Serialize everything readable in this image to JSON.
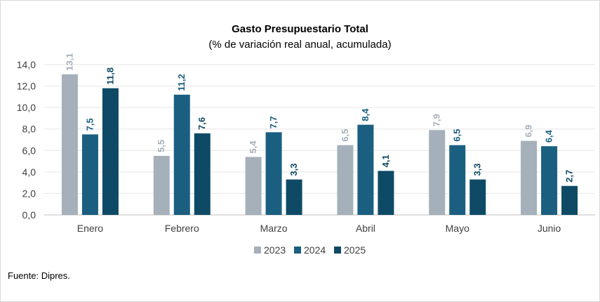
{
  "chart_data": {
    "type": "bar",
    "title": "Gasto Presupuestario Total",
    "subtitle": "(% de variación real anual, acumulada)",
    "categories": [
      "Enero",
      "Febrero",
      "Marzo",
      "Abril",
      "Mayo",
      "Junio"
    ],
    "series": [
      {
        "name": "2023",
        "color": "#a5b0ba",
        "label_color": "#a5b0ba",
        "values": [
          13.1,
          5.5,
          5.4,
          6.5,
          7.9,
          6.9
        ],
        "labels": [
          "13,1",
          "5,5",
          "5,4",
          "6,5",
          "7,9",
          "6,9"
        ]
      },
      {
        "name": "2024",
        "color": "#1a5f80",
        "label_color": "#1a5f80",
        "values": [
          7.5,
          11.2,
          7.7,
          8.4,
          6.5,
          6.4
        ],
        "labels": [
          "7,5",
          "11,2",
          "7,7",
          "8,4",
          "6,5",
          "6,4"
        ]
      },
      {
        "name": "2025",
        "color": "#0e4a66",
        "label_color": "#0e4a66",
        "values": [
          11.8,
          7.6,
          3.3,
          4.1,
          3.3,
          2.7
        ],
        "labels": [
          "11,8",
          "7,6",
          "3,3",
          "4,1",
          "3,3",
          "2,7"
        ]
      }
    ],
    "ylim": [
      0,
      14
    ],
    "yticks": [
      0,
      2,
      4,
      6,
      8,
      10,
      12,
      14
    ],
    "ytick_labels": [
      "0,0",
      "2,0",
      "4,0",
      "6,0",
      "8,0",
      "10,0",
      "12,0",
      "14,0"
    ],
    "grid": true,
    "legend_position": "bottom"
  },
  "footer": {
    "source": "Fuente: Dipres."
  }
}
